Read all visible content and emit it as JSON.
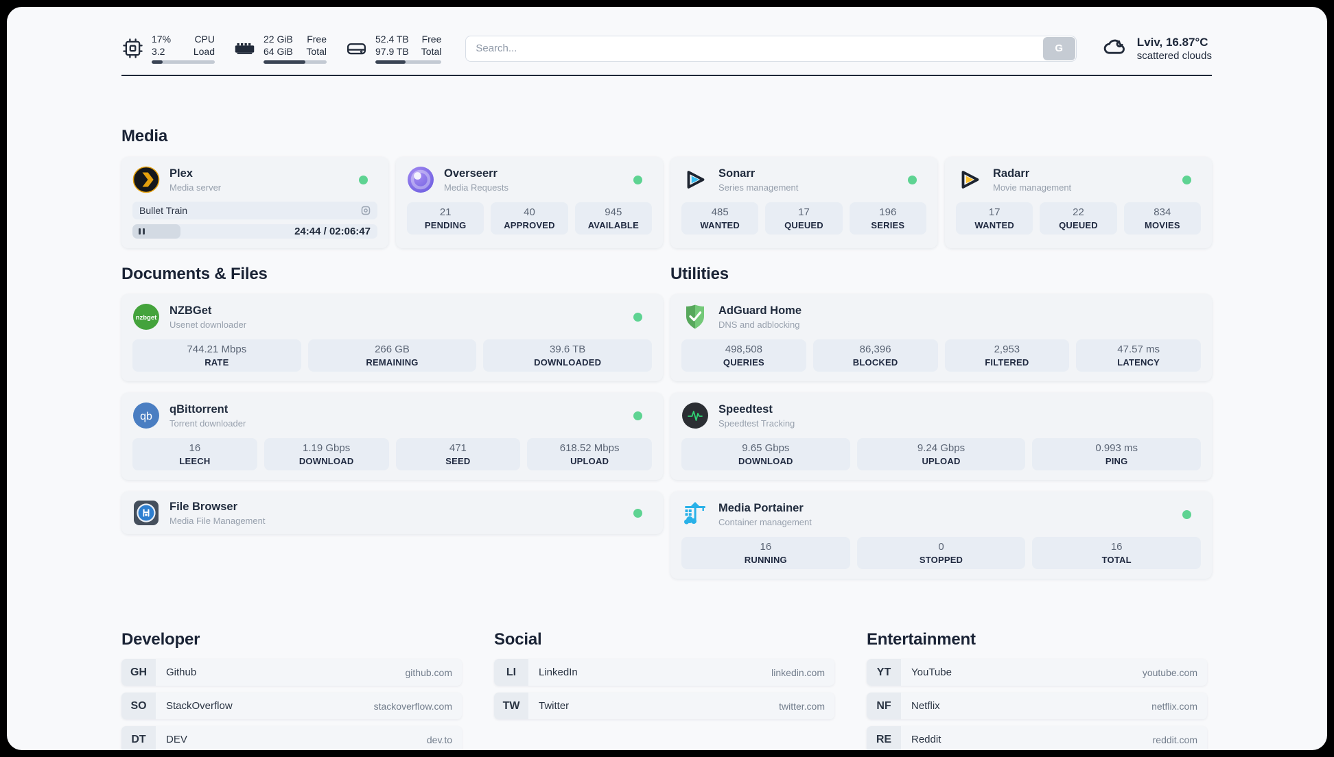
{
  "header": {
    "cpu": {
      "values": [
        "17%",
        "3.2"
      ],
      "labels": [
        "CPU",
        "Load"
      ],
      "percent": 17
    },
    "memory": {
      "values": [
        "22 GiB",
        "64 GiB"
      ],
      "labels": [
        "Free",
        "Total"
      ],
      "percent": 66
    },
    "disk": {
      "values": [
        "52.4 TB",
        "97.9 TB"
      ],
      "labels": [
        "Free",
        "Total"
      ],
      "percent": 46
    },
    "search": {
      "placeholder": "Search...",
      "button_label": "G"
    },
    "weather": {
      "location_temp": "Lviv, 16.87°C",
      "condition": "scattered clouds"
    }
  },
  "media": {
    "title": "Media",
    "plex": {
      "name": "Plex",
      "desc": "Media server",
      "now_playing": "Bullet Train",
      "time": "24:44 / 02:06:47",
      "progress_percent": 19.5
    },
    "overseerr": {
      "name": "Overseerr",
      "desc": "Media Requests",
      "stats": [
        {
          "value": "21",
          "label": "PENDING"
        },
        {
          "value": "40",
          "label": "APPROVED"
        },
        {
          "value": "945",
          "label": "AVAILABLE"
        }
      ]
    },
    "sonarr": {
      "name": "Sonarr",
      "desc": "Series management",
      "stats": [
        {
          "value": "485",
          "label": "WANTED"
        },
        {
          "value": "17",
          "label": "QUEUED"
        },
        {
          "value": "196",
          "label": "SERIES"
        }
      ]
    },
    "radarr": {
      "name": "Radarr",
      "desc": "Movie management",
      "stats": [
        {
          "value": "17",
          "label": "WANTED"
        },
        {
          "value": "22",
          "label": "QUEUED"
        },
        {
          "value": "834",
          "label": "MOVIES"
        }
      ]
    }
  },
  "documents": {
    "title": "Documents & Files",
    "nzbget": {
      "name": "NZBGet",
      "desc": "Usenet downloader",
      "stats": [
        {
          "value": "744.21 Mbps",
          "label": "RATE"
        },
        {
          "value": "266 GB",
          "label": "REMAINING"
        },
        {
          "value": "39.6 TB",
          "label": "DOWNLOADED"
        }
      ]
    },
    "qbittorrent": {
      "name": "qBittorrent",
      "desc": "Torrent downloader",
      "stats": [
        {
          "value": "16",
          "label": "LEECH"
        },
        {
          "value": "1.19 Gbps",
          "label": "DOWNLOAD"
        },
        {
          "value": "471",
          "label": "SEED"
        },
        {
          "value": "618.52 Mbps",
          "label": "UPLOAD"
        }
      ]
    },
    "filebrowser": {
      "name": "File Browser",
      "desc": "Media File Management"
    }
  },
  "utilities": {
    "title": "Utilities",
    "adguard": {
      "name": "AdGuard Home",
      "desc": "DNS and adblocking",
      "stats": [
        {
          "value": "498,508",
          "label": "QUERIES"
        },
        {
          "value": "86,396",
          "label": "BLOCKED"
        },
        {
          "value": "2,953",
          "label": "FILTERED"
        },
        {
          "value": "47.57 ms",
          "label": "LATENCY"
        }
      ]
    },
    "speedtest": {
      "name": "Speedtest",
      "desc": "Speedtest Tracking",
      "stats": [
        {
          "value": "9.65 Gbps",
          "label": "DOWNLOAD"
        },
        {
          "value": "9.24 Gbps",
          "label": "UPLOAD"
        },
        {
          "value": "0.993 ms",
          "label": "PING"
        }
      ]
    },
    "portainer": {
      "name": "Media Portainer",
      "desc": "Container management",
      "stats": [
        {
          "value": "16",
          "label": "RUNNING"
        },
        {
          "value": "0",
          "label": "STOPPED"
        },
        {
          "value": "16",
          "label": "TOTAL"
        }
      ]
    }
  },
  "bookmarks": {
    "developer": {
      "title": "Developer",
      "links": [
        {
          "badge": "GH",
          "name": "Github",
          "url": "github.com"
        },
        {
          "badge": "SO",
          "name": "StackOverflow",
          "url": "stackoverflow.com"
        },
        {
          "badge": "DT",
          "name": "DEV",
          "url": "dev.to"
        }
      ]
    },
    "social": {
      "title": "Social",
      "links": [
        {
          "badge": "LI",
          "name": "LinkedIn",
          "url": "linkedin.com"
        },
        {
          "badge": "TW",
          "name": "Twitter",
          "url": "twitter.com"
        }
      ]
    },
    "entertainment": {
      "title": "Entertainment",
      "links": [
        {
          "badge": "YT",
          "name": "YouTube",
          "url": "youtube.com"
        },
        {
          "badge": "NF",
          "name": "Netflix",
          "url": "netflix.com"
        },
        {
          "badge": "RE",
          "name": "Reddit",
          "url": "reddit.com"
        }
      ]
    }
  },
  "colors": {
    "accent_green": "#5ed392",
    "navy": "#1e2839",
    "card_bg": "#f2f4f7",
    "stat_bg": "#e8edf4"
  }
}
